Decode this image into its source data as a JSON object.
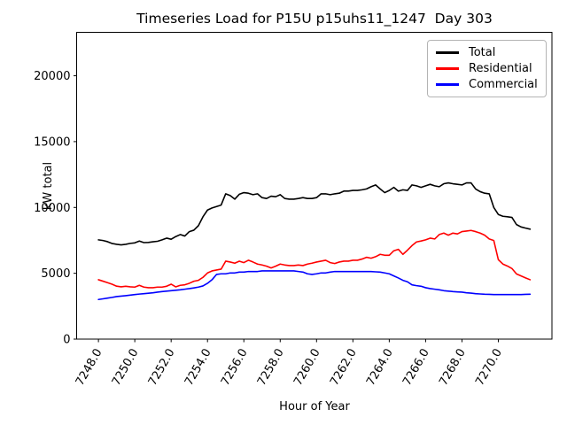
{
  "chart_data": {
    "type": "line",
    "title": "Timeseries Load for P15U p15uhs11_1247  Day 303",
    "xlabel": "Hour of Year",
    "ylabel": "kW total",
    "legend_position": "upper right",
    "grid": false,
    "xlim": [
      7246.8,
      7272.95
    ],
    "ylim": [
      0,
      23300
    ],
    "xticks": [
      7248,
      7250,
      7252,
      7254,
      7256,
      7258,
      7260,
      7262,
      7264,
      7266,
      7268,
      7270
    ],
    "xtick_labels": [
      "7248.0",
      "7250.0",
      "7252.0",
      "7254.0",
      "7256.0",
      "7258.0",
      "7260.0",
      "7262.0",
      "7264.0",
      "7266.0",
      "7268.0",
      "7270.0"
    ],
    "yticks": [
      0,
      5000,
      10000,
      15000,
      20000
    ],
    "ytick_labels": [
      "0",
      "5000",
      "10000",
      "15000",
      "20000"
    ],
    "xtick_rotation": 60,
    "x": [
      7248.0,
      7248.25,
      7248.5,
      7248.75,
      7249.0,
      7249.25,
      7249.5,
      7249.75,
      7250.0,
      7250.25,
      7250.5,
      7250.75,
      7251.0,
      7251.25,
      7251.5,
      7251.75,
      7252.0,
      7252.25,
      7252.5,
      7252.75,
      7253.0,
      7253.25,
      7253.5,
      7253.75,
      7254.0,
      7254.25,
      7254.5,
      7254.75,
      7255.0,
      7255.25,
      7255.5,
      7255.75,
      7256.0,
      7256.25,
      7256.5,
      7256.75,
      7257.0,
      7257.25,
      7257.5,
      7257.75,
      7258.0,
      7258.25,
      7258.5,
      7258.75,
      7259.0,
      7259.25,
      7259.5,
      7259.75,
      7260.0,
      7260.25,
      7260.5,
      7260.75,
      7261.0,
      7261.25,
      7261.5,
      7261.75,
      7262.0,
      7262.25,
      7262.5,
      7262.75,
      7263.0,
      7263.25,
      7263.5,
      7263.75,
      7264.0,
      7264.25,
      7264.5,
      7264.75,
      7265.0,
      7265.25,
      7265.5,
      7265.75,
      7266.0,
      7266.25,
      7266.5,
      7266.75,
      7267.0,
      7267.25,
      7267.5,
      7267.75,
      7268.0,
      7268.25,
      7268.5,
      7268.75,
      7269.0,
      7269.25,
      7269.5,
      7269.75,
      7270.0,
      7270.25,
      7270.5,
      7270.75,
      7271.0,
      7271.25,
      7271.5,
      7271.75
    ],
    "series": [
      {
        "name": "Total",
        "color": "#000000",
        "values": [
          7540,
          7490,
          7400,
          7260,
          7200,
          7160,
          7200,
          7270,
          7310,
          7450,
          7330,
          7340,
          7390,
          7430,
          7540,
          7670,
          7585,
          7785,
          7940,
          7830,
          8165,
          8275,
          8615,
          9290,
          9800,
          9960,
          10070,
          10180,
          11035,
          10900,
          10630,
          11000,
          11125,
          11080,
          10970,
          11035,
          10745,
          10680,
          10855,
          10815,
          10970,
          10680,
          10630,
          10630,
          10680,
          10745,
          10680,
          10680,
          10745,
          11035,
          11035,
          10970,
          11035,
          11080,
          11240,
          11240,
          11290,
          11290,
          11340,
          11405,
          11575,
          11710,
          11405,
          11125,
          11290,
          11525,
          11240,
          11340,
          11290,
          11710,
          11640,
          11525,
          11640,
          11755,
          11640,
          11575,
          11800,
          11865,
          11800,
          11755,
          11710,
          11865,
          11865,
          11405,
          11200,
          11080,
          11035,
          10000,
          9465,
          9330,
          9290,
          9240,
          8700,
          8520,
          8430,
          8350
        ]
      },
      {
        "name": "Residential",
        "color": "#ff0000",
        "values": [
          4510,
          4400,
          4290,
          4170,
          4020,
          3970,
          4015,
          3970,
          3950,
          4085,
          3950,
          3905,
          3905,
          3950,
          3950,
          4015,
          4170,
          3970,
          4085,
          4125,
          4240,
          4395,
          4465,
          4690,
          5025,
          5180,
          5250,
          5315,
          5920,
          5855,
          5765,
          5920,
          5810,
          5990,
          5855,
          5700,
          5630,
          5540,
          5405,
          5540,
          5700,
          5630,
          5585,
          5585,
          5630,
          5585,
          5700,
          5765,
          5855,
          5920,
          5990,
          5810,
          5740,
          5855,
          5920,
          5920,
          5990,
          5990,
          6080,
          6215,
          6145,
          6260,
          6440,
          6370,
          6370,
          6710,
          6820,
          6440,
          6750,
          7100,
          7380,
          7450,
          7540,
          7670,
          7605,
          7940,
          8050,
          7895,
          8050,
          7990,
          8165,
          8210,
          8255,
          8165,
          8050,
          7895,
          7605,
          7490,
          6035,
          5700,
          5550,
          5360,
          4950,
          4800,
          4650,
          4510
        ]
      },
      {
        "name": "Commercial",
        "color": "#0000ff",
        "values": [
          3010,
          3060,
          3115,
          3170,
          3230,
          3265,
          3300,
          3340,
          3385,
          3420,
          3450,
          3485,
          3520,
          3565,
          3610,
          3645,
          3680,
          3710,
          3745,
          3790,
          3835,
          3890,
          3950,
          4040,
          4240,
          4510,
          4915,
          4960,
          4960,
          5025,
          5025,
          5090,
          5090,
          5135,
          5135,
          5135,
          5180,
          5180,
          5180,
          5180,
          5180,
          5180,
          5180,
          5180,
          5135,
          5090,
          4960,
          4915,
          4960,
          5025,
          5025,
          5090,
          5135,
          5135,
          5135,
          5135,
          5135,
          5135,
          5135,
          5135,
          5135,
          5110,
          5090,
          5025,
          4960,
          4800,
          4645,
          4465,
          4355,
          4125,
          4060,
          4015,
          3905,
          3835,
          3790,
          3745,
          3680,
          3645,
          3610,
          3585,
          3565,
          3520,
          3495,
          3450,
          3430,
          3410,
          3400,
          3385,
          3385,
          3385,
          3385,
          3385,
          3385,
          3385,
          3400,
          3410
        ]
      }
    ]
  }
}
